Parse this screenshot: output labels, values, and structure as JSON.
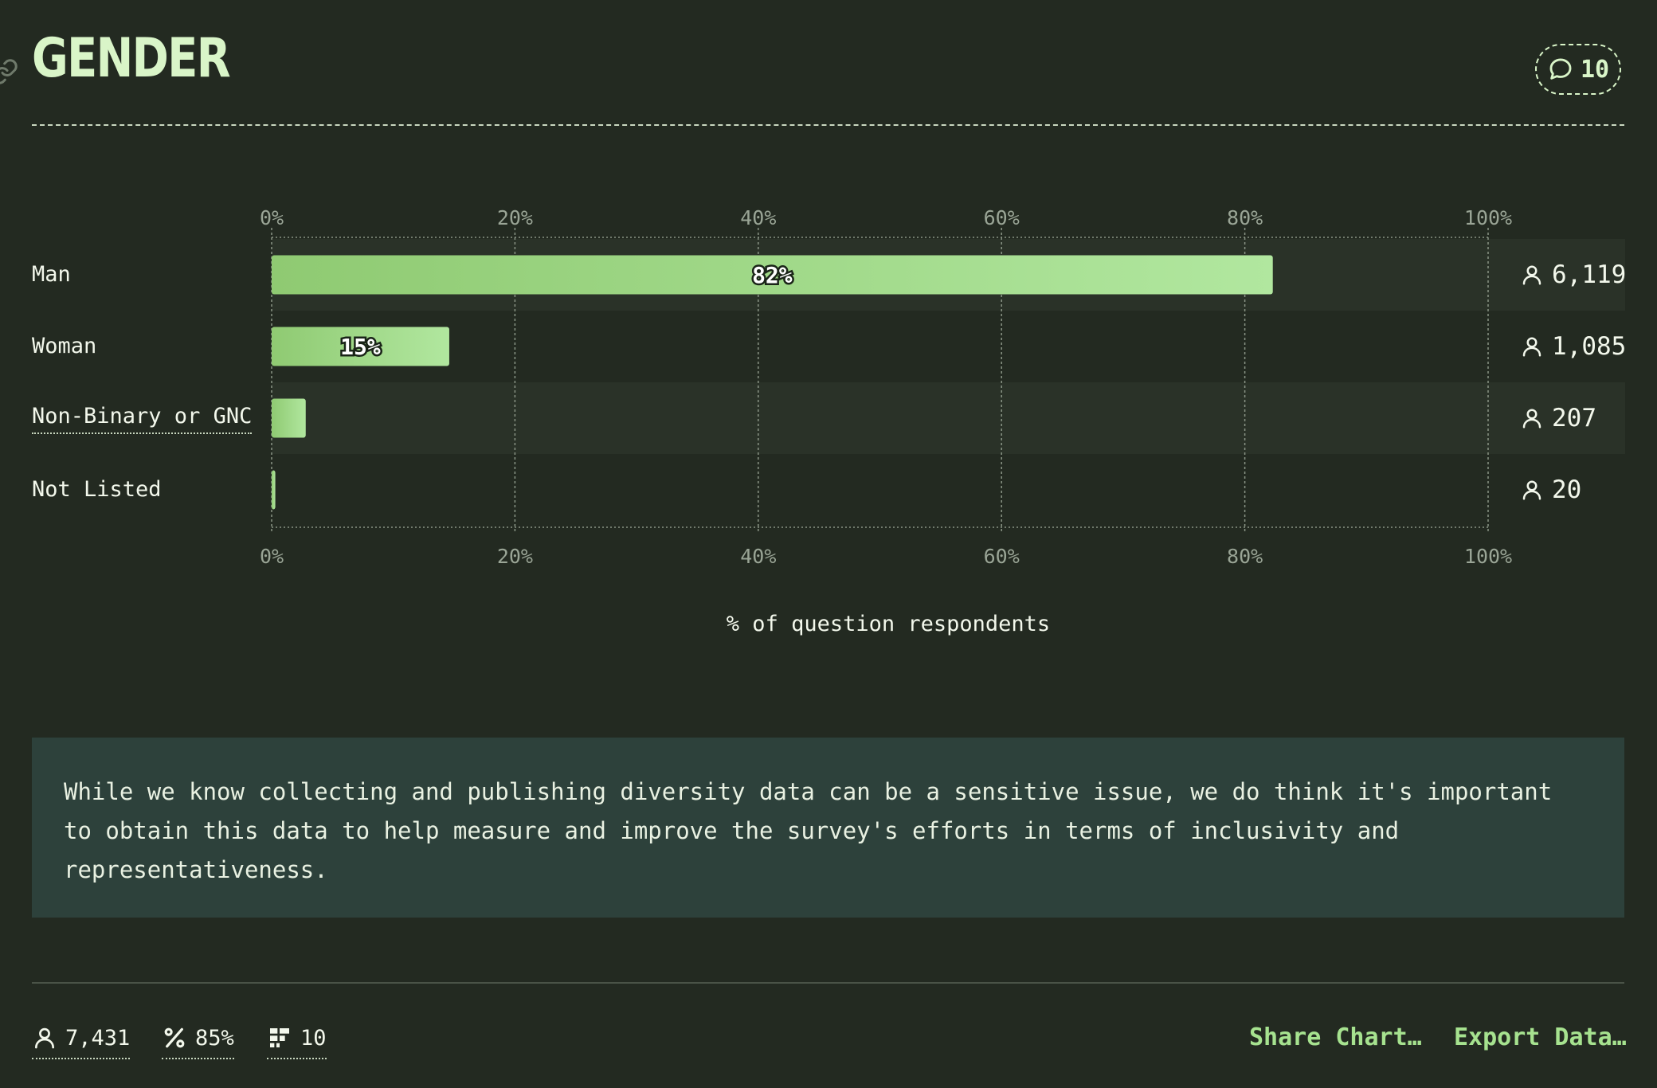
{
  "header": {
    "title": "GENDER",
    "comment_count": "10"
  },
  "chart_data": {
    "type": "bar",
    "orientation": "horizontal",
    "title": "GENDER",
    "xlabel": "% of question respondents",
    "xlim": [
      0,
      100
    ],
    "x_ticks": [
      "0%",
      "20%",
      "40%",
      "60%",
      "80%",
      "100%"
    ],
    "grid": true,
    "categories": [
      "Man",
      "Woman",
      "Non-Binary or GNC",
      "Not Listed"
    ],
    "values": [
      82.3,
      14.6,
      2.8,
      0.3
    ],
    "value_labels": [
      "82%",
      "15%",
      "",
      ""
    ],
    "counts": [
      "6,119",
      "1,085",
      "207",
      "20"
    ]
  },
  "note": {
    "text": "While we know collecting and publishing diversity data can be a sensitive issue, we do think it's important to obtain this data to help measure and improve the survey's efforts in terms of inclusivity and representativeness."
  },
  "footer": {
    "respondents": "7,431",
    "percentage": "85%",
    "items": "10",
    "share_label": "Share Chart…",
    "export_label": "Export Data…"
  },
  "colors": {
    "background": "#232a21",
    "bar_start": "#8fca72",
    "bar_end": "#b1e79f",
    "accent": "#d9f5c8",
    "link": "#a6e28f",
    "note_bg": "#2d413b"
  }
}
